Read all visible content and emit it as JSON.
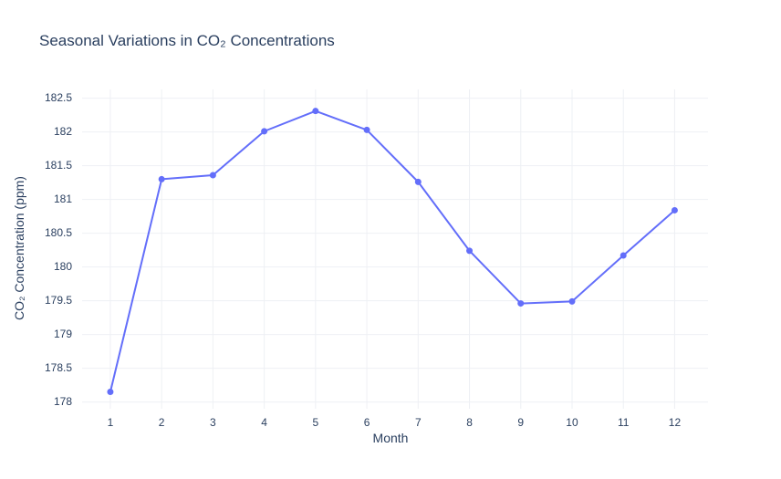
{
  "chart_data": {
    "type": "line",
    "title": "Seasonal Variations in CO₂ Concentrations",
    "xlabel": "Month",
    "ylabel": "CO₂ Concentration (ppm)",
    "x": [
      1,
      2,
      3,
      4,
      5,
      6,
      7,
      8,
      9,
      10,
      11,
      12
    ],
    "series": [
      {
        "values": [
          178.15,
          181.3,
          181.36,
          182.01,
          182.31,
          182.03,
          181.26,
          180.24,
          179.46,
          179.49,
          180.17,
          180.84
        ],
        "color": "#636efa"
      }
    ],
    "xlim": [
      0.45,
      12.65
    ],
    "ylim": [
      177.9,
      182.63
    ],
    "xticks": [
      "1",
      "2",
      "3",
      "4",
      "5",
      "6",
      "7",
      "8",
      "9",
      "10",
      "11",
      "12"
    ],
    "yticks": [
      "178",
      "178.5",
      "179",
      "179.5",
      "180",
      "180.5",
      "181",
      "181.5",
      "182",
      "182.5"
    ],
    "grid": true,
    "legend": "none"
  }
}
